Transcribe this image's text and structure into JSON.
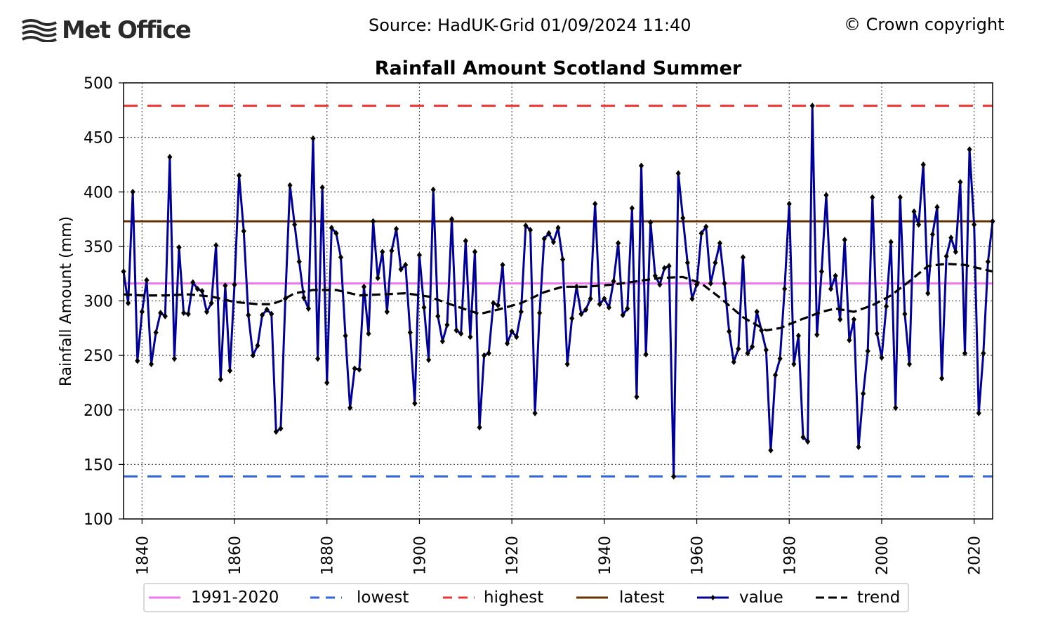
{
  "header": {
    "logo_text": "Met Office",
    "source": "Source: HadUK-Grid 01/09/2024 11:40",
    "copyright": "© Crown copyright"
  },
  "chart_data": {
    "type": "line",
    "title": "Rainfall Amount Scotland Summer",
    "ylabel": "Rainfall Amount (mm)",
    "xlabel": "",
    "xlim": [
      1836,
      2024
    ],
    "ylim": [
      100,
      500
    ],
    "xticks": [
      1840,
      1860,
      1880,
      1900,
      1920,
      1940,
      1960,
      1980,
      2000,
      2020
    ],
    "yticks": [
      100,
      150,
      200,
      250,
      300,
      350,
      400,
      450,
      500
    ],
    "grid": true,
    "legend_position": "bottom",
    "colors": {
      "value": "#000099",
      "trend": "#000000",
      "average": "#ee77ee",
      "lowest": "#3366dd",
      "highest": "#ee3333",
      "latest": "#663300"
    },
    "reference_lines": [
      {
        "name": "1991-2020",
        "value": 316,
        "style": "solid"
      },
      {
        "name": "lowest",
        "value": 139,
        "style": "dashed"
      },
      {
        "name": "highest",
        "value": 479,
        "style": "dashed"
      },
      {
        "name": "latest",
        "value": 373,
        "style": "solid"
      }
    ],
    "legend": [
      "1991-2020",
      "lowest",
      "highest",
      "latest",
      "value",
      "trend"
    ],
    "series": [
      {
        "name": "value",
        "x_start": 1836,
        "values": [
          327,
          298,
          400,
          245,
          290,
          319,
          242,
          271,
          289,
          286,
          432,
          247,
          349,
          289,
          288,
          317,
          311,
          309,
          290,
          298,
          351,
          228,
          314,
          236,
          315,
          415,
          364,
          287,
          250,
          259,
          287,
          292,
          288,
          180,
          183,
          302,
          406,
          370,
          336,
          303,
          293,
          449,
          247,
          404,
          225,
          367,
          362,
          340,
          268,
          202,
          238,
          237,
          313,
          270,
          373,
          321,
          345,
          290,
          346,
          366,
          329,
          333,
          271,
          206,
          342,
          294,
          246,
          402,
          286,
          263,
          278,
          375,
          273,
          270,
          355,
          267,
          345,
          184,
          250,
          252,
          298,
          296,
          333,
          261,
          272,
          267,
          290,
          369,
          365,
          197,
          289,
          357,
          362,
          354,
          367,
          338,
          242,
          284,
          313,
          288,
          292,
          302,
          389,
          297,
          302,
          294,
          318,
          353,
          287,
          293,
          385,
          212,
          424,
          251,
          372,
          323,
          315,
          330,
          332,
          139,
          417,
          376,
          335,
          302,
          315,
          362,
          368,
          316,
          335,
          353,
          316,
          272,
          244,
          256,
          340,
          252,
          258,
          290,
          273,
          255,
          163,
          232,
          247,
          311,
          389,
          242,
          268,
          175,
          171,
          479,
          269,
          327,
          397,
          311,
          323,
          283,
          356,
          264,
          283,
          166,
          215,
          254,
          395,
          270,
          248,
          295,
          354,
          202,
          395,
          288,
          242,
          382,
          370,
          425,
          307,
          361,
          386,
          229,
          341,
          358,
          345,
          409,
          252,
          439,
          370,
          197,
          252,
          336,
          373
        ]
      },
      {
        "name": "trend",
        "points": [
          [
            1836,
            306
          ],
          [
            1840,
            305
          ],
          [
            1845,
            305
          ],
          [
            1850,
            306
          ],
          [
            1855,
            304
          ],
          [
            1860,
            299
          ],
          [
            1865,
            297
          ],
          [
            1868,
            297
          ],
          [
            1870,
            300
          ],
          [
            1873,
            307
          ],
          [
            1877,
            310
          ],
          [
            1882,
            310
          ],
          [
            1887,
            305
          ],
          [
            1892,
            306
          ],
          [
            1897,
            307
          ],
          [
            1902,
            304
          ],
          [
            1908,
            295
          ],
          [
            1913,
            288
          ],
          [
            1917,
            292
          ],
          [
            1922,
            298
          ],
          [
            1927,
            308
          ],
          [
            1931,
            313
          ],
          [
            1936,
            313
          ],
          [
            1942,
            315
          ],
          [
            1947,
            318
          ],
          [
            1952,
            321
          ],
          [
            1957,
            322
          ],
          [
            1961,
            316
          ],
          [
            1965,
            303
          ],
          [
            1970,
            285
          ],
          [
            1975,
            273
          ],
          [
            1978,
            275
          ],
          [
            1982,
            282
          ],
          [
            1987,
            290
          ],
          [
            1990,
            293
          ],
          [
            1994,
            290
          ],
          [
            1998,
            296
          ],
          [
            2002,
            305
          ],
          [
            2006,
            318
          ],
          [
            2010,
            332
          ],
          [
            2014,
            334
          ],
          [
            2018,
            333
          ],
          [
            2022,
            329
          ],
          [
            2024,
            327
          ]
        ]
      }
    ]
  }
}
